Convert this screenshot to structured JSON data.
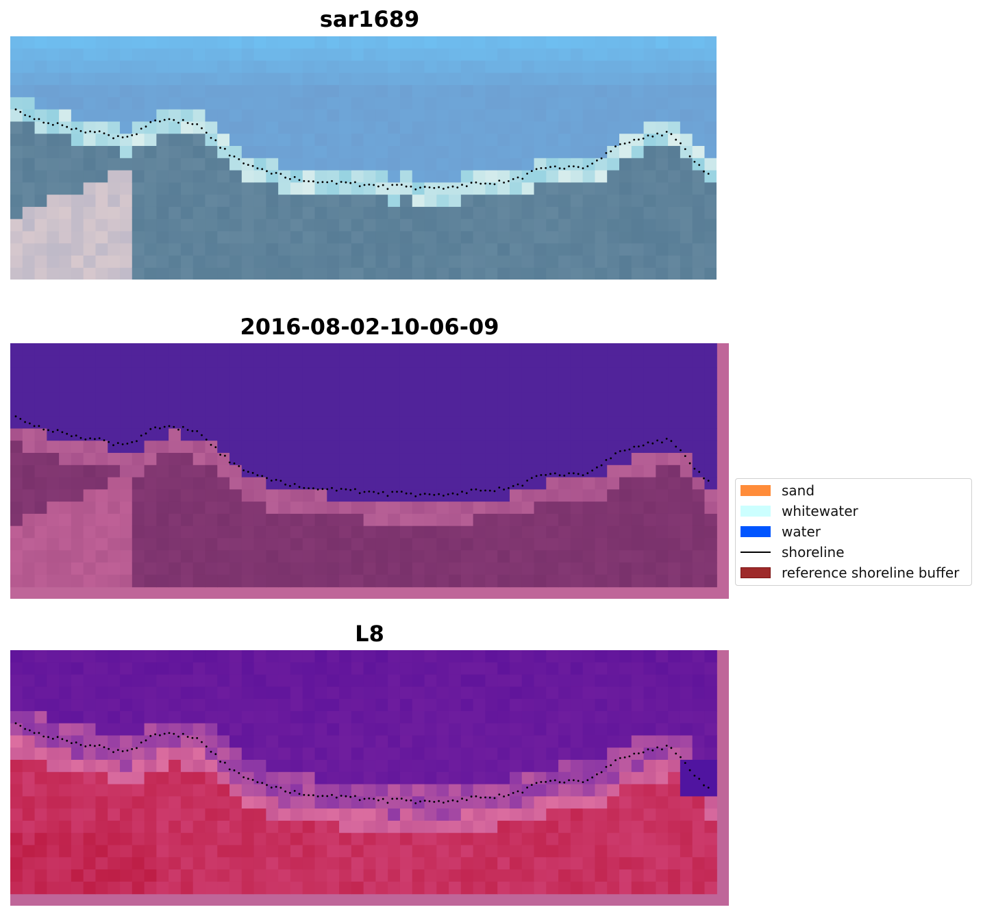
{
  "panels": [
    {
      "title": "sar1689",
      "mode": "rgb"
    },
    {
      "title": "2016-08-02-10-06-09",
      "mode": "class"
    },
    {
      "title": "L8",
      "mode": "index"
    }
  ],
  "legend": {
    "items": [
      {
        "label": "sand",
        "color": "#ff8c3a",
        "kind": "patch"
      },
      {
        "label": "whitewater",
        "color": "#ccffff",
        "kind": "patch"
      },
      {
        "label": "water",
        "color": "#0055ff",
        "kind": "patch"
      },
      {
        "label": "shoreline",
        "color": "#000000",
        "kind": "line"
      },
      {
        "label": "reference shoreline buffer",
        "color": "#9e2a2a",
        "kind": "patch"
      }
    ]
  },
  "colors": {
    "buffer_overlay": "#bf6699",
    "class_water": "#51239a",
    "shoreline_dots": "#000000"
  }
}
